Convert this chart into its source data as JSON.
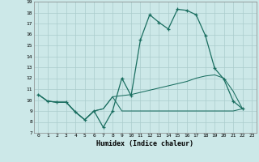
{
  "xlabel": "Humidex (Indice chaleur)",
  "background_color": "#cce8e8",
  "grid_color": "#aacccc",
  "line_color": "#1a6e60",
  "xlim": [
    -0.5,
    23.5
  ],
  "ylim": [
    7,
    19
  ],
  "xtick_labels": [
    "0",
    "1",
    "2",
    "3",
    "4",
    "5",
    "6",
    "7",
    "8",
    "9",
    "10",
    "11",
    "12",
    "13",
    "14",
    "15",
    "16",
    "17",
    "18",
    "19",
    "20",
    "21",
    "22",
    "23"
  ],
  "ytick_labels": [
    "7",
    "8",
    "9",
    "10",
    "11",
    "12",
    "13",
    "14",
    "15",
    "16",
    "17",
    "18",
    "19"
  ],
  "main_x": [
    0,
    1,
    2,
    3,
    4,
    5,
    6,
    7,
    8,
    9,
    10,
    11,
    12,
    13,
    14,
    15,
    16,
    17,
    18,
    19,
    20,
    21,
    22
  ],
  "main_y": [
    10.5,
    9.9,
    9.8,
    9.8,
    8.9,
    8.2,
    9.0,
    7.5,
    9.0,
    12.0,
    10.4,
    15.5,
    17.8,
    17.1,
    16.5,
    18.3,
    18.2,
    17.8,
    15.9,
    12.9,
    11.9,
    9.9,
    9.2
  ],
  "upper_x": [
    0,
    1,
    2,
    3,
    4,
    5,
    6,
    7,
    8,
    9,
    10,
    11,
    12,
    13,
    14,
    15,
    16,
    17,
    18,
    19,
    20,
    21,
    22
  ],
  "upper_y": [
    10.5,
    9.9,
    9.8,
    9.8,
    8.9,
    8.2,
    9.0,
    9.2,
    10.3,
    10.4,
    10.5,
    10.7,
    10.9,
    11.1,
    11.3,
    11.5,
    11.7,
    12.0,
    12.2,
    12.3,
    12.0,
    10.8,
    9.2
  ],
  "lower_x": [
    0,
    1,
    2,
    3,
    4,
    5,
    6,
    7,
    8,
    9,
    10,
    11,
    12,
    13,
    14,
    15,
    16,
    17,
    18,
    19,
    20,
    21,
    22
  ],
  "lower_y": [
    10.5,
    9.9,
    9.8,
    9.8,
    8.9,
    8.2,
    9.0,
    9.2,
    10.3,
    9.0,
    9.0,
    9.0,
    9.0,
    9.0,
    9.0,
    9.0,
    9.0,
    9.0,
    9.0,
    9.0,
    9.0,
    9.0,
    9.2
  ]
}
